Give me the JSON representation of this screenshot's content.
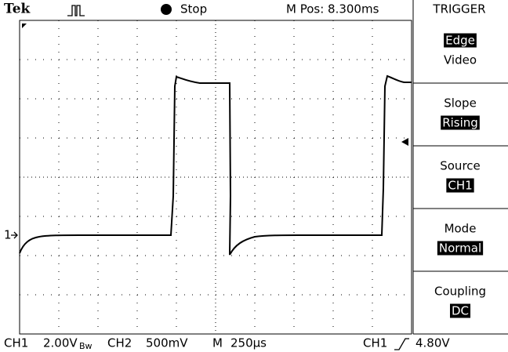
{
  "header": {
    "brand": "Tek",
    "status": "Stop",
    "position": "M Pos: 8.300ms",
    "menu_title": "TRIGGER"
  },
  "ch1_marker": "1",
  "menu": [
    {
      "lines": [
        "Edge",
        "Video"
      ],
      "selected": 0
    },
    {
      "lines": [
        "Slope",
        "Rising"
      ],
      "selected": 1
    },
    {
      "lines": [
        "Source",
        "CH1"
      ],
      "selected": 1
    },
    {
      "lines": [
        "Mode",
        "Normal"
      ],
      "selected": 1
    },
    {
      "lines": [
        "Coupling",
        "DC"
      ],
      "selected": 1
    }
  ],
  "footer": {
    "ch1": "CH1",
    "ch1_scale": "2.00V",
    "bandwidth": "Bw",
    "ch2": "CH2",
    "ch2_scale": "500mV",
    "timebase_label": "M",
    "timebase": "250µs",
    "trigger_source": "CH1",
    "trigger_level": "4.80V"
  }
}
